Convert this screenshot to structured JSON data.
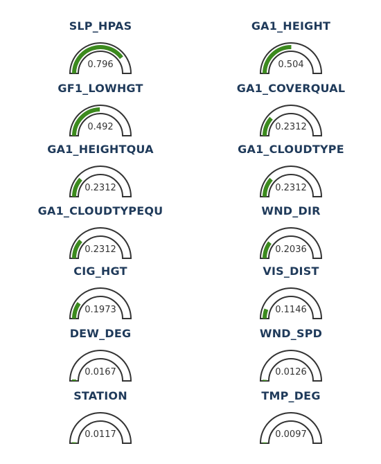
{
  "chart_data": {
    "type": "gauge",
    "range": [
      0,
      1
    ],
    "colors": {
      "fill": "#3c8a1e",
      "outline": "#333333",
      "title": "#1f3a5a",
      "value": "#333333"
    },
    "gauges": [
      {
        "name": "SLP_HPAS",
        "value": 0.796,
        "label": "0.796"
      },
      {
        "name": "GA1_HEIGHT",
        "value": 0.504,
        "label": "0.504"
      },
      {
        "name": "GF1_LOWHGT",
        "value": 0.492,
        "label": "0.492"
      },
      {
        "name": "GA1_COVERQUAL",
        "value": 0.2312,
        "label": "0.2312"
      },
      {
        "name": "GA1_HEIGHTQUA",
        "value": 0.2312,
        "label": "0.2312"
      },
      {
        "name": "GA1_CLOUDTYPE",
        "value": 0.2312,
        "label": "0.2312"
      },
      {
        "name": "GA1_CLOUDTYPEQU",
        "value": 0.2312,
        "label": "0.2312"
      },
      {
        "name": "WND_DIR",
        "value": 0.2036,
        "label": "0.2036"
      },
      {
        "name": "CIG_HGT",
        "value": 0.1973,
        "label": "0.1973"
      },
      {
        "name": "VIS_DIST",
        "value": 0.1146,
        "label": "0.1146"
      },
      {
        "name": "DEW_DEG",
        "value": 0.0167,
        "label": "0.0167"
      },
      {
        "name": "WND_SPD",
        "value": 0.0126,
        "label": "0.0126"
      },
      {
        "name": "STATION",
        "value": 0.0117,
        "label": "0.0117"
      },
      {
        "name": "TMP_DEG",
        "value": 0.0097,
        "label": "0.0097"
      }
    ]
  }
}
